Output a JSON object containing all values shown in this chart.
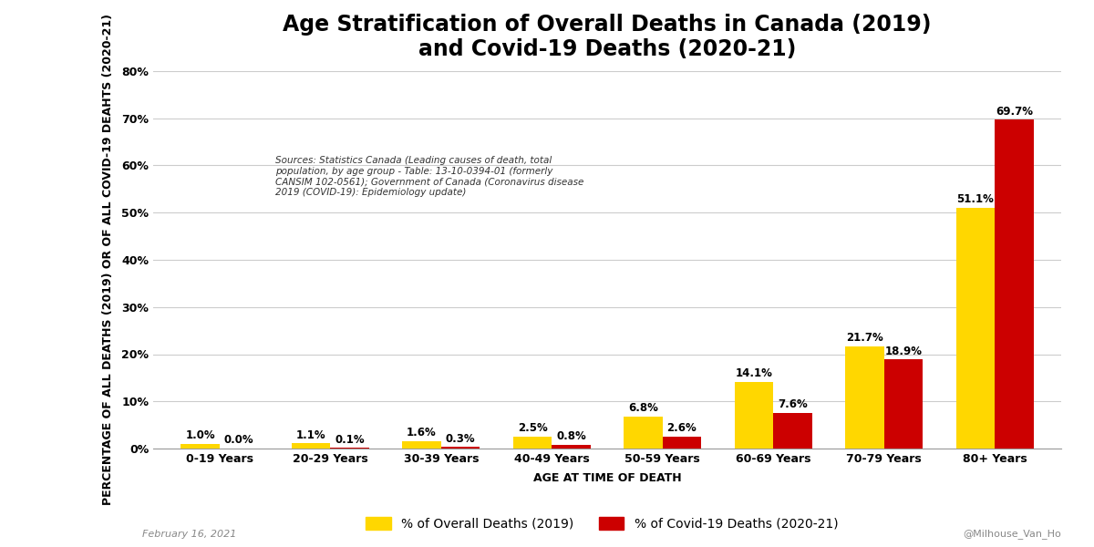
{
  "title_line1": "Age Stratification of Overall Deaths in Canada (2019)",
  "title_line2": "and Covid-19 Deaths (2020-21)",
  "categories": [
    "0-19 Years",
    "20-29 Years",
    "30-39 Years",
    "40-49 Years",
    "50-59 Years",
    "60-69 Years",
    "70-79 Years",
    "80+ Years"
  ],
  "overall_deaths": [
    1.0,
    1.1,
    1.6,
    2.5,
    6.8,
    14.1,
    21.7,
    51.1
  ],
  "covid_deaths": [
    0.0,
    0.1,
    0.3,
    0.8,
    2.6,
    7.6,
    18.9,
    69.7
  ],
  "overall_color": "#FFD700",
  "covid_color": "#CC0000",
  "xlabel": "AGE AT TIME OF DEATH",
  "ylabel": "PERCENTAGE OF ALL DEATHS (2019) OR OF ALL COVID-19 DEAHTS (2020-21)",
  "ylim": [
    0,
    80
  ],
  "yticks": [
    0,
    10,
    20,
    30,
    40,
    50,
    60,
    70,
    80
  ],
  "ytick_labels": [
    "0%",
    "10%",
    "20%",
    "30%",
    "40%",
    "50%",
    "60%",
    "70%",
    "80%"
  ],
  "legend_overall": "% of Overall Deaths (2019)",
  "legend_covid": "% of Covid-19 Deaths (2020-21)",
  "source_text": "Sources: Statistics Canada (Leading causes of death, total\npopulation, by age group - Table: 13-10-0394-01 (formerly\nCANSIM 102-0561); Government of Canada (Coronavirus disease\n2019 (COVID-19): Epidemiology update)",
  "watermark_left": "February 16, 2021",
  "watermark_right": "@Milhouse_Van_Ho",
  "background_color": "#FFFFFF",
  "grid_color": "#CCCCCC",
  "bar_width": 0.35,
  "title_fontsize": 17,
  "axis_label_fontsize": 9,
  "tick_fontsize": 9,
  "annotation_fontsize": 8.5,
  "legend_fontsize": 10
}
